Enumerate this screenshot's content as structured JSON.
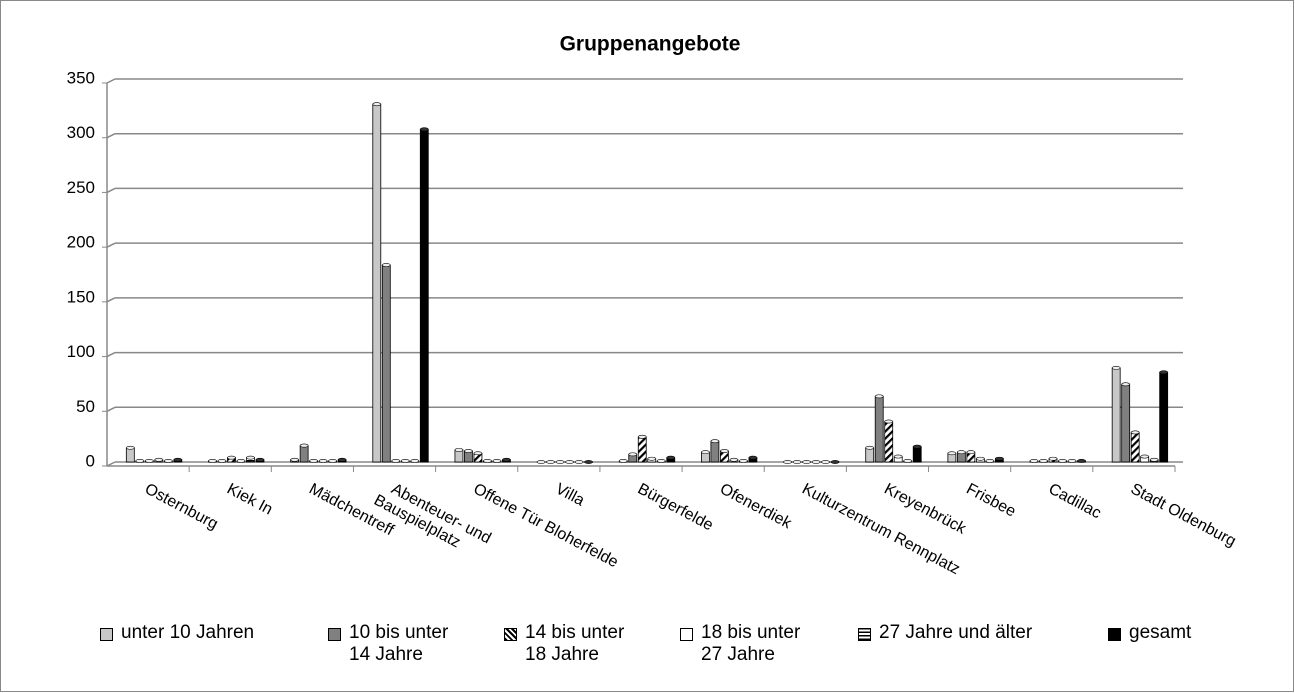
{
  "chart_data": {
    "type": "bar",
    "title": "Gruppenangebote",
    "categories": [
      "Osternburg",
      "Kiek In",
      "Mädchentreff",
      "Abenteuer- und Bauspielplatz",
      "Offene Tür Bloherfelde",
      "Villa",
      "Bürgerfelde",
      "Ofenerdiek",
      "Kulturzentrum Rennplatz",
      "Kreyenbrück",
      "Frisbee",
      "Cadillac",
      "Stadt Oldenburg"
    ],
    "series": [
      {
        "name": "unter 10 Jahren",
        "color": "#c8c8c8",
        "values": [
          13,
          1,
          2,
          327,
          11,
          0,
          1,
          9,
          0,
          13,
          8,
          1,
          86
        ]
      },
      {
        "name": "10 bis unter 14 Jahre",
        "color": "#808080",
        "values": [
          1,
          1,
          15,
          180,
          10,
          0,
          7,
          19,
          0,
          60,
          9,
          1,
          71
        ]
      },
      {
        "name": "14 bis unter 18 Jahre",
        "color": "#ffffff",
        "pattern": "diagonal",
        "values": [
          1,
          4,
          1,
          1,
          8,
          0,
          23,
          10,
          0,
          37,
          9,
          3,
          27
        ]
      },
      {
        "name": "18 bis unter 27 Jahre",
        "color": "#ffffff",
        "values": [
          2,
          1,
          1,
          1,
          1,
          0,
          3,
          2,
          0,
          5,
          3,
          1,
          5
        ]
      },
      {
        "name": "27 Jahre und älter",
        "color": "#ffffff",
        "pattern": "horizontal",
        "values": [
          1,
          4,
          1,
          1,
          1,
          0,
          1,
          1,
          0,
          1,
          1,
          1,
          2
        ]
      },
      {
        "name": "gesamt",
        "color": "#000000",
        "values": [
          2,
          2,
          2,
          304,
          2,
          0,
          4,
          4,
          0,
          14,
          3,
          1,
          82
        ]
      }
    ],
    "ylim": [
      0,
      350
    ],
    "yticks": [
      0,
      50,
      100,
      150,
      200,
      250,
      300,
      350
    ],
    "grid": true,
    "legend": "bottom"
  }
}
